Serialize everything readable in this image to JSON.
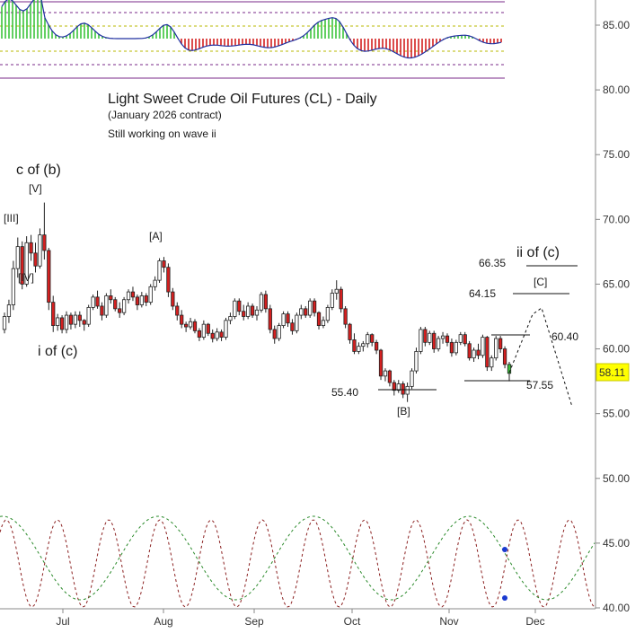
{
  "chart_data": {
    "type": "candlestick",
    "title": "Light Sweet Crude Oil Futures (CL) - Daily",
    "subtitle": "(January 2026 contract)",
    "note": "Still working on wave ii",
    "ylim": [
      40,
      86
    ],
    "yticks": [
      40,
      45,
      50,
      55,
      60,
      65,
      70,
      75,
      80,
      85
    ],
    "ytick_labels": [
      "40.00",
      "45.00",
      "50.00",
      "55.00",
      "60.00",
      "65.00",
      "70.00",
      "75.00",
      "80.00",
      "85.00"
    ],
    "xticks": [
      "Jul",
      "Aug",
      "Sep",
      "Oct",
      "Nov",
      "Dec"
    ],
    "last_price": "58.11",
    "last_price_value": 58.11,
    "colors": {
      "up": "#ffffff",
      "down": "#d42020",
      "wick": "#222222",
      "badge": "#ffff00",
      "osc_up": "#3cc43c",
      "osc_down": "#d42020"
    },
    "candles": [
      {
        "o": 61.5,
        "h": 62.8,
        "l": 61.2,
        "c": 62.5
      },
      {
        "o": 62.5,
        "h": 63.8,
        "l": 62.0,
        "c": 63.4
      },
      {
        "o": 63.4,
        "h": 66.8,
        "l": 63.0,
        "c": 66.2
      },
      {
        "o": 66.2,
        "h": 68.6,
        "l": 65.5,
        "c": 67.9
      },
      {
        "o": 67.9,
        "h": 68.3,
        "l": 64.6,
        "c": 65.0
      },
      {
        "o": 65.0,
        "h": 68.7,
        "l": 64.8,
        "c": 68.2
      },
      {
        "o": 68.2,
        "h": 68.8,
        "l": 66.8,
        "c": 67.4
      },
      {
        "o": 67.4,
        "h": 68.2,
        "l": 65.9,
        "c": 66.4
      },
      {
        "o": 66.4,
        "h": 69.3,
        "l": 66.2,
        "c": 68.8
      },
      {
        "o": 68.8,
        "h": 71.3,
        "l": 66.9,
        "c": 67.6
      },
      {
        "o": 67.6,
        "h": 67.8,
        "l": 63.0,
        "c": 63.6
      },
      {
        "o": 63.6,
        "h": 64.1,
        "l": 61.3,
        "c": 61.8
      },
      {
        "o": 61.8,
        "h": 62.7,
        "l": 61.4,
        "c": 62.4
      },
      {
        "o": 62.4,
        "h": 62.6,
        "l": 61.2,
        "c": 61.5
      },
      {
        "o": 61.5,
        "h": 62.9,
        "l": 61.2,
        "c": 62.6
      },
      {
        "o": 62.6,
        "h": 62.8,
        "l": 61.5,
        "c": 61.9
      },
      {
        "o": 61.9,
        "h": 62.9,
        "l": 61.6,
        "c": 62.6
      },
      {
        "o": 62.6,
        "h": 62.9,
        "l": 61.7,
        "c": 62.2
      },
      {
        "o": 62.2,
        "h": 62.3,
        "l": 61.4,
        "c": 61.9
      },
      {
        "o": 61.9,
        "h": 63.4,
        "l": 61.7,
        "c": 63.2
      },
      {
        "o": 63.2,
        "h": 64.2,
        "l": 63.0,
        "c": 64.0
      },
      {
        "o": 64.0,
        "h": 64.5,
        "l": 63.1,
        "c": 63.3
      },
      {
        "o": 63.3,
        "h": 63.6,
        "l": 62.2,
        "c": 62.6
      },
      {
        "o": 62.6,
        "h": 64.3,
        "l": 62.4,
        "c": 64.1
      },
      {
        "o": 64.1,
        "h": 64.6,
        "l": 63.5,
        "c": 63.8
      },
      {
        "o": 63.8,
        "h": 64.0,
        "l": 62.9,
        "c": 63.1
      },
      {
        "o": 63.1,
        "h": 63.6,
        "l": 62.4,
        "c": 62.8
      },
      {
        "o": 62.8,
        "h": 64.0,
        "l": 62.6,
        "c": 63.8
      },
      {
        "o": 63.8,
        "h": 64.6,
        "l": 63.5,
        "c": 64.4
      },
      {
        "o": 64.4,
        "h": 64.8,
        "l": 63.7,
        "c": 64.0
      },
      {
        "o": 64.0,
        "h": 64.2,
        "l": 63.0,
        "c": 63.4
      },
      {
        "o": 63.4,
        "h": 64.4,
        "l": 63.2,
        "c": 64.1
      },
      {
        "o": 64.1,
        "h": 64.3,
        "l": 63.3,
        "c": 63.6
      },
      {
        "o": 63.6,
        "h": 65.0,
        "l": 63.4,
        "c": 64.8
      },
      {
        "o": 64.8,
        "h": 65.6,
        "l": 64.5,
        "c": 65.3
      },
      {
        "o": 65.3,
        "h": 67.0,
        "l": 65.1,
        "c": 66.8
      },
      {
        "o": 66.8,
        "h": 67.1,
        "l": 65.9,
        "c": 66.3
      },
      {
        "o": 66.3,
        "h": 66.6,
        "l": 64.0,
        "c": 64.4
      },
      {
        "o": 64.4,
        "h": 64.7,
        "l": 63.0,
        "c": 63.3
      },
      {
        "o": 63.3,
        "h": 63.6,
        "l": 62.2,
        "c": 62.6
      },
      {
        "o": 62.6,
        "h": 63.0,
        "l": 61.6,
        "c": 61.9
      },
      {
        "o": 61.9,
        "h": 62.1,
        "l": 61.3,
        "c": 61.7
      },
      {
        "o": 61.7,
        "h": 62.4,
        "l": 61.5,
        "c": 62.1
      },
      {
        "o": 62.1,
        "h": 62.3,
        "l": 61.2,
        "c": 61.4
      },
      {
        "o": 61.4,
        "h": 61.6,
        "l": 60.6,
        "c": 60.9
      },
      {
        "o": 60.9,
        "h": 62.2,
        "l": 60.7,
        "c": 61.9
      },
      {
        "o": 61.9,
        "h": 62.0,
        "l": 61.0,
        "c": 61.2
      },
      {
        "o": 61.2,
        "h": 61.5,
        "l": 60.5,
        "c": 60.8
      },
      {
        "o": 60.8,
        "h": 61.6,
        "l": 60.6,
        "c": 61.3
      },
      {
        "o": 61.3,
        "h": 61.5,
        "l": 60.6,
        "c": 60.9
      },
      {
        "o": 60.9,
        "h": 62.4,
        "l": 60.7,
        "c": 62.2
      },
      {
        "o": 62.2,
        "h": 62.8,
        "l": 61.9,
        "c": 62.5
      },
      {
        "o": 62.5,
        "h": 63.9,
        "l": 62.3,
        "c": 63.7
      },
      {
        "o": 63.7,
        "h": 63.9,
        "l": 62.6,
        "c": 62.9
      },
      {
        "o": 62.9,
        "h": 63.4,
        "l": 62.2,
        "c": 62.5
      },
      {
        "o": 62.5,
        "h": 63.6,
        "l": 62.3,
        "c": 63.3
      },
      {
        "o": 63.3,
        "h": 63.5,
        "l": 62.4,
        "c": 62.6
      },
      {
        "o": 62.6,
        "h": 63.3,
        "l": 62.2,
        "c": 63.0
      },
      {
        "o": 63.0,
        "h": 64.4,
        "l": 62.8,
        "c": 64.2
      },
      {
        "o": 64.2,
        "h": 64.5,
        "l": 62.8,
        "c": 63.1
      },
      {
        "o": 63.1,
        "h": 63.4,
        "l": 61.2,
        "c": 61.5
      },
      {
        "o": 61.5,
        "h": 61.8,
        "l": 60.4,
        "c": 60.8
      },
      {
        "o": 60.8,
        "h": 62.0,
        "l": 60.6,
        "c": 61.8
      },
      {
        "o": 61.8,
        "h": 62.9,
        "l": 61.6,
        "c": 62.7
      },
      {
        "o": 62.7,
        "h": 62.9,
        "l": 61.7,
        "c": 62.0
      },
      {
        "o": 62.0,
        "h": 62.3,
        "l": 61.1,
        "c": 61.4
      },
      {
        "o": 61.4,
        "h": 62.8,
        "l": 61.2,
        "c": 62.6
      },
      {
        "o": 62.6,
        "h": 63.4,
        "l": 62.3,
        "c": 63.1
      },
      {
        "o": 63.1,
        "h": 63.3,
        "l": 62.4,
        "c": 62.6
      },
      {
        "o": 62.6,
        "h": 63.9,
        "l": 62.4,
        "c": 63.7
      },
      {
        "o": 63.7,
        "h": 63.9,
        "l": 62.5,
        "c": 62.8
      },
      {
        "o": 62.8,
        "h": 62.9,
        "l": 61.5,
        "c": 61.8
      },
      {
        "o": 61.8,
        "h": 62.5,
        "l": 61.6,
        "c": 62.2
      },
      {
        "o": 62.2,
        "h": 63.4,
        "l": 62.0,
        "c": 63.2
      },
      {
        "o": 63.2,
        "h": 64.6,
        "l": 63.0,
        "c": 64.3
      },
      {
        "o": 64.3,
        "h": 65.3,
        "l": 63.8,
        "c": 64.6
      },
      {
        "o": 64.6,
        "h": 64.8,
        "l": 62.8,
        "c": 63.1
      },
      {
        "o": 63.1,
        "h": 63.3,
        "l": 61.6,
        "c": 61.9
      },
      {
        "o": 61.9,
        "h": 62.0,
        "l": 60.4,
        "c": 60.7
      },
      {
        "o": 60.7,
        "h": 61.2,
        "l": 59.6,
        "c": 59.8
      },
      {
        "o": 59.8,
        "h": 60.5,
        "l": 59.6,
        "c": 60.2
      },
      {
        "o": 60.2,
        "h": 60.6,
        "l": 59.8,
        "c": 60.4
      },
      {
        "o": 60.4,
        "h": 61.3,
        "l": 60.1,
        "c": 61.1
      },
      {
        "o": 61.1,
        "h": 61.2,
        "l": 60.2,
        "c": 60.5
      },
      {
        "o": 60.5,
        "h": 60.7,
        "l": 59.6,
        "c": 59.9
      },
      {
        "o": 59.9,
        "h": 60.0,
        "l": 57.6,
        "c": 57.9
      },
      {
        "o": 57.9,
        "h": 58.5,
        "l": 57.5,
        "c": 58.3
      },
      {
        "o": 58.3,
        "h": 58.4,
        "l": 57.1,
        "c": 57.4
      },
      {
        "o": 57.4,
        "h": 57.6,
        "l": 56.4,
        "c": 56.8
      },
      {
        "o": 56.8,
        "h": 57.6,
        "l": 56.6,
        "c": 57.3
      },
      {
        "o": 57.3,
        "h": 57.5,
        "l": 56.2,
        "c": 56.5
      },
      {
        "o": 56.5,
        "h": 57.4,
        "l": 55.9,
        "c": 57.1
      },
      {
        "o": 57.1,
        "h": 58.5,
        "l": 56.9,
        "c": 58.3
      },
      {
        "o": 58.3,
        "h": 60.1,
        "l": 58.1,
        "c": 59.8
      },
      {
        "o": 59.8,
        "h": 61.7,
        "l": 59.6,
        "c": 61.5
      },
      {
        "o": 61.5,
        "h": 61.7,
        "l": 60.2,
        "c": 60.5
      },
      {
        "o": 60.5,
        "h": 61.4,
        "l": 60.3,
        "c": 61.2
      },
      {
        "o": 61.2,
        "h": 61.4,
        "l": 59.7,
        "c": 60.0
      },
      {
        "o": 60.0,
        "h": 61.0,
        "l": 59.8,
        "c": 60.8
      },
      {
        "o": 60.8,
        "h": 61.3,
        "l": 60.4,
        "c": 61.0
      },
      {
        "o": 61.0,
        "h": 61.2,
        "l": 60.2,
        "c": 60.5
      },
      {
        "o": 60.5,
        "h": 60.8,
        "l": 59.4,
        "c": 59.7
      },
      {
        "o": 59.7,
        "h": 60.7,
        "l": 59.5,
        "c": 60.5
      },
      {
        "o": 60.5,
        "h": 61.3,
        "l": 60.3,
        "c": 61.1
      },
      {
        "o": 61.1,
        "h": 61.3,
        "l": 60.2,
        "c": 60.4
      },
      {
        "o": 60.4,
        "h": 60.6,
        "l": 59.1,
        "c": 59.3
      },
      {
        "o": 59.3,
        "h": 60.1,
        "l": 59.0,
        "c": 59.9
      },
      {
        "o": 59.9,
        "h": 60.4,
        "l": 59.2,
        "c": 59.5
      },
      {
        "o": 59.5,
        "h": 61.1,
        "l": 59.3,
        "c": 60.9
      },
      {
        "o": 60.9,
        "h": 61.0,
        "l": 58.3,
        "c": 58.6
      },
      {
        "o": 58.6,
        "h": 59.5,
        "l": 58.3,
        "c": 59.3
      },
      {
        "o": 59.3,
        "h": 61.0,
        "l": 59.1,
        "c": 60.8
      },
      {
        "o": 60.8,
        "h": 61.0,
        "l": 59.7,
        "c": 60.0
      },
      {
        "o": 60.0,
        "h": 60.2,
        "l": 58.5,
        "c": 58.8
      },
      {
        "o": 58.8,
        "h": 59.0,
        "l": 57.5,
        "c": 58.11
      }
    ],
    "levels": [
      {
        "label": "66.35",
        "value": 66.35
      },
      {
        "label": "64.15",
        "value": 64.15
      },
      {
        "label": "60.40",
        "value": 60.4
      },
      {
        "label": "57.55",
        "value": 57.55
      },
      {
        "label": "55.40",
        "value": 55.4
      }
    ],
    "wave_labels": [
      {
        "text": "c of (b)",
        "size": "big"
      },
      {
        "text": "[V]",
        "size": "small"
      },
      {
        "text": "[III]",
        "size": "small"
      },
      {
        "text": "[IV]",
        "size": "small"
      },
      {
        "text": "i of (c)",
        "size": "big"
      },
      {
        "text": "[A]",
        "size": "small"
      },
      {
        "text": "[B]",
        "size": "small"
      },
      {
        "text": "ii of (c)",
        "size": "big"
      },
      {
        "text": "[C]",
        "size": "small"
      }
    ]
  }
}
